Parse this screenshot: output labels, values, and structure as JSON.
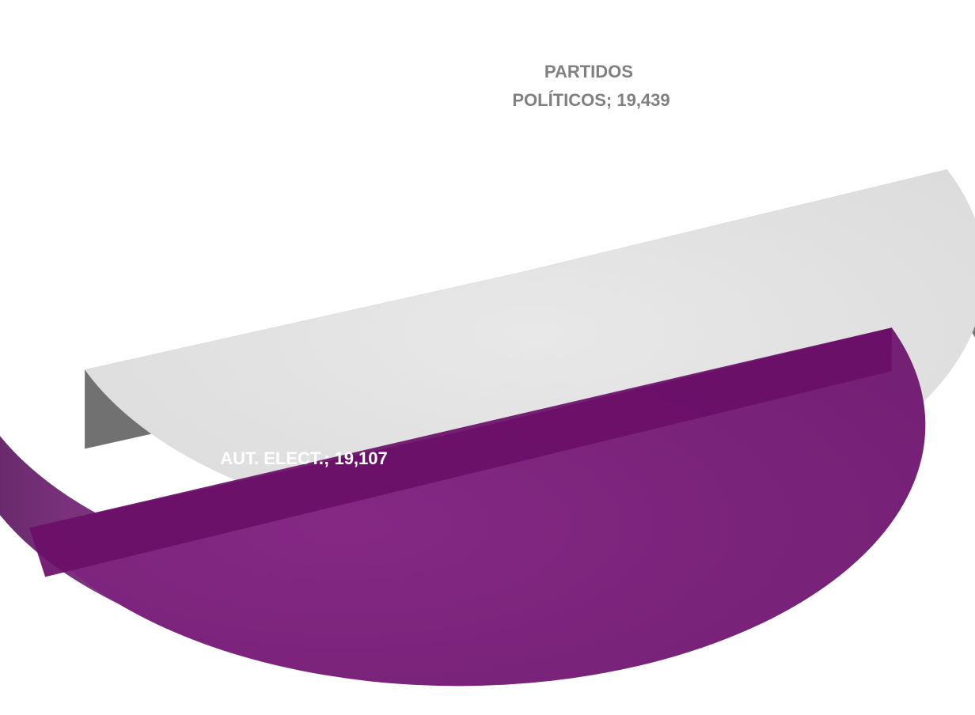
{
  "chart_data": {
    "type": "pie",
    "style": "3d-exploded",
    "slices": [
      {
        "label_line1": "PARTIDOS",
        "label_line2": "POLÍTICOS; 19,439",
        "category": "PARTIDOS POLÍTICOS",
        "value": 19439,
        "value_text": "19,439",
        "color": "#e4e4e4",
        "side_color": "#777777",
        "label_color": "#808080"
      },
      {
        "label_line1": "AUT. ELECT.; 19,107",
        "category": "AUT. ELECT.",
        "value": 19107,
        "value_text": "19,107",
        "color": "#7b237b",
        "side_color": "#4f2150",
        "label_color": "#ffffff"
      }
    ],
    "legend": "none",
    "title": ""
  }
}
